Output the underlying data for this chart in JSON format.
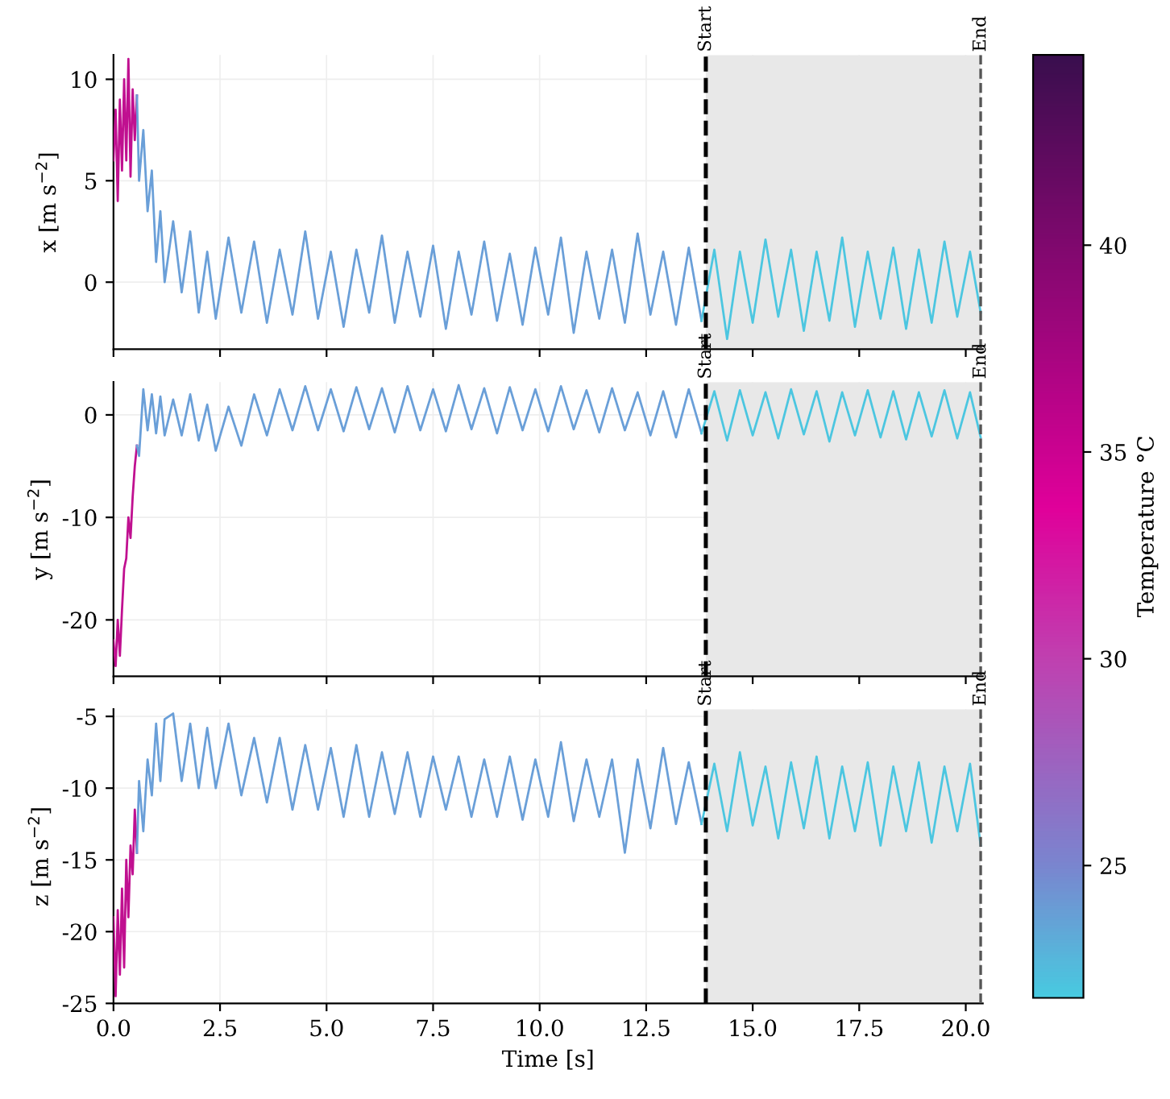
{
  "chart_data": [
    {
      "type": "line",
      "ylabel": "x [m s$^{−2}$]",
      "xlim": [
        0,
        20.4
      ],
      "xticks": [
        0,
        2.5,
        5,
        7.5,
        10,
        12.5,
        15,
        17.5,
        20
      ],
      "ylim": [
        -3.3,
        11.2
      ],
      "yticks": [
        0,
        5,
        10
      ],
      "tick_labels": "y",
      "grid": true,
      "clabel": "Temperature °C",
      "clim": [
        21.8,
        44.6
      ],
      "cticks": [
        25,
        30,
        35,
        40
      ],
      "series": [
        {
          "color": "#c01090",
          "x": [
            0,
            0.05,
            0.1,
            0.15,
            0.2,
            0.25,
            0.3,
            0.35,
            0.4,
            0.45,
            0.5,
            0.55
          ],
          "values": [
            6,
            8.5,
            4,
            9,
            5.5,
            10,
            6,
            11,
            5.2,
            9.5,
            7,
            9.2
          ]
        },
        {
          "color": "#6a9fd8",
          "x": [
            0.55,
            0.6,
            0.7,
            0.8,
            0.9,
            1.0,
            1.1,
            1.2,
            1.4,
            1.6,
            1.8,
            2.0,
            2.2,
            2.4,
            2.7,
            3.0,
            3.3,
            3.6,
            3.9,
            4.2,
            4.5,
            4.8,
            5.1,
            5.4,
            5.7,
            6.0,
            6.3,
            6.6,
            6.9,
            7.2,
            7.5,
            7.8,
            8.1,
            8.4,
            8.7,
            9.0,
            9.3,
            9.6,
            9.9,
            10.2,
            10.5,
            10.8,
            11.1,
            11.4,
            11.7,
            12.0,
            12.3,
            12.6,
            12.9,
            13.2,
            13.5,
            13.8
          ],
          "values": [
            9.2,
            5,
            7.5,
            3.5,
            5.5,
            1,
            3.5,
            0,
            3,
            -0.5,
            2.5,
            -1.5,
            1.5,
            -1.8,
            2.2,
            -1.5,
            2,
            -2,
            1.6,
            -1.6,
            2.5,
            -1.8,
            1.5,
            -2.2,
            1.6,
            -1.5,
            2.3,
            -2,
            1.5,
            -1.7,
            1.8,
            -2.3,
            1.5,
            -1.6,
            2,
            -1.9,
            1.4,
            -2.1,
            1.7,
            -1.6,
            2.2,
            -2.5,
            1.5,
            -1.8,
            1.6,
            -2,
            2.4,
            -1.6,
            1.5,
            -2.1,
            1.7,
            -1.9
          ]
        },
        {
          "color": "#4cc6e0",
          "x": [
            13.8,
            14.1,
            14.4,
            14.7,
            15.0,
            15.3,
            15.6,
            15.9,
            16.2,
            16.5,
            16.8,
            17.1,
            17.4,
            17.7,
            18.0,
            18.3,
            18.6,
            18.9,
            19.2,
            19.5,
            19.8,
            20.1,
            20.35
          ],
          "values": [
            -1.9,
            1.6,
            -2.8,
            1.5,
            -2,
            2.1,
            -1.7,
            1.6,
            -2.4,
            1.5,
            -1.9,
            2.2,
            -2.2,
            1.5,
            -1.8,
            1.7,
            -2.3,
            1.6,
            -2,
            2,
            -1.7,
            1.5,
            -1.5
          ]
        }
      ],
      "ref_lines": [
        {
          "axis": "x",
          "value": 13.9,
          "label": "Start",
          "color": "#000000",
          "line_style": "dashed"
        },
        {
          "axis": "x",
          "value": 20.35,
          "label": "End",
          "color": "#555555",
          "line_style": "dashed"
        }
      ],
      "bands": [
        {
          "axis": "x",
          "from": 13.9,
          "to": 20.35,
          "color": "#e8e8e8"
        }
      ]
    },
    {
      "type": "line",
      "ylabel": "y [m s$^{−2}$]",
      "xlim": [
        0,
        20.4
      ],
      "xticks": [
        0,
        2.5,
        5,
        7.5,
        10,
        12.5,
        15,
        17.5,
        20
      ],
      "ylim": [
        -25.5,
        3.2
      ],
      "yticks": [
        -20,
        -10,
        0
      ],
      "tick_labels": "y",
      "grid": true,
      "series": [
        {
          "color": "#c01090",
          "x": [
            0,
            0.05,
            0.1,
            0.15,
            0.2,
            0.25,
            0.3,
            0.35,
            0.4,
            0.45,
            0.5,
            0.55
          ],
          "values": [
            -22,
            -24.5,
            -20,
            -23.5,
            -19,
            -15,
            -14,
            -10,
            -12,
            -8,
            -5,
            -3
          ]
        },
        {
          "color": "#6a9fd8",
          "x": [
            0.55,
            0.6,
            0.7,
            0.8,
            0.9,
            1.0,
            1.1,
            1.2,
            1.4,
            1.6,
            1.8,
            2.0,
            2.2,
            2.4,
            2.7,
            3.0,
            3.3,
            3.6,
            3.9,
            4.2,
            4.5,
            4.8,
            5.1,
            5.4,
            5.7,
            6.0,
            6.3,
            6.6,
            6.9,
            7.2,
            7.5,
            7.8,
            8.1,
            8.4,
            8.7,
            9.0,
            9.3,
            9.6,
            9.9,
            10.2,
            10.5,
            10.8,
            11.1,
            11.4,
            11.7,
            12.0,
            12.3,
            12.6,
            12.9,
            13.2,
            13.5,
            13.8
          ],
          "values": [
            -3,
            -4,
            2.5,
            -1.5,
            2,
            -1.8,
            1.8,
            -2,
            1.5,
            -2,
            2,
            -2.5,
            1.0,
            -3.5,
            0.8,
            -3,
            2,
            -2,
            2.5,
            -1.5,
            2.8,
            -1.5,
            2.5,
            -1.6,
            2.7,
            -1.4,
            2.6,
            -1.7,
            2.8,
            -1.5,
            2.5,
            -1.6,
            2.9,
            -1.4,
            2.6,
            -1.8,
            2.7,
            -1.5,
            2.5,
            -1.6,
            2.8,
            -1.4,
            2.4,
            -1.7,
            2.6,
            -1.5,
            2.2,
            -2,
            2.3,
            -2.2,
            2.5,
            -1.8
          ]
        },
        {
          "color": "#4cc6e0",
          "x": [
            13.8,
            14.1,
            14.4,
            14.7,
            15.0,
            15.3,
            15.6,
            15.9,
            16.2,
            16.5,
            16.8,
            17.1,
            17.4,
            17.7,
            18.0,
            18.3,
            18.6,
            18.9,
            19.2,
            19.5,
            19.8,
            20.1,
            20.35
          ],
          "values": [
            -1.8,
            2.3,
            -2.5,
            2.4,
            -2,
            2.2,
            -2.3,
            2.5,
            -1.9,
            2.3,
            -2.6,
            2.2,
            -2,
            2.4,
            -2.2,
            2.3,
            -2.4,
            2.2,
            -2.1,
            2.4,
            -2.3,
            2.2,
            -2.2
          ]
        }
      ],
      "ref_lines": [
        {
          "axis": "x",
          "value": 13.9,
          "label": "Start",
          "color": "#000000",
          "line_style": "dashed"
        },
        {
          "axis": "x",
          "value": 20.35,
          "label": "End",
          "color": "#555555",
          "line_style": "dashed"
        }
      ],
      "bands": [
        {
          "axis": "x",
          "from": 13.9,
          "to": 20.35,
          "color": "#e8e8e8"
        }
      ]
    },
    {
      "type": "line",
      "xlabel": "Time [s]",
      "ylabel": "z [m s$^{−2}$]",
      "xlim": [
        0,
        20.4
      ],
      "xticks": [
        {
          "value": 0,
          "label": "0.0"
        },
        2.5,
        {
          "value": 5,
          "label": "5.0"
        },
        7.5,
        {
          "value": 10,
          "label": "10.0"
        },
        12.5,
        {
          "value": 15,
          "label": "15.0"
        },
        17.5,
        {
          "value": 20,
          "label": "20.0"
        }
      ],
      "ylim": [
        -25,
        -4.5
      ],
      "yticks": [
        -25,
        -20,
        -15,
        -10,
        -5
      ],
      "grid": true,
      "series": [
        {
          "color": "#c01090",
          "x": [
            0,
            0.05,
            0.1,
            0.15,
            0.2,
            0.25,
            0.3,
            0.35,
            0.4,
            0.45,
            0.5,
            0.55
          ],
          "values": [
            -19,
            -24.5,
            -18.5,
            -23,
            -17,
            -22.5,
            -15,
            -19,
            -14,
            -16,
            -11.5,
            -14.5
          ]
        },
        {
          "color": "#6a9fd8",
          "x": [
            0.55,
            0.6,
            0.7,
            0.8,
            0.9,
            1.0,
            1.1,
            1.2,
            1.4,
            1.6,
            1.8,
            2.0,
            2.2,
            2.4,
            2.7,
            3.0,
            3.3,
            3.6,
            3.9,
            4.2,
            4.5,
            4.8,
            5.1,
            5.4,
            5.7,
            6.0,
            6.3,
            6.6,
            6.9,
            7.2,
            7.5,
            7.8,
            8.1,
            8.4,
            8.7,
            9.0,
            9.3,
            9.6,
            9.9,
            10.2,
            10.5,
            10.8,
            11.1,
            11.4,
            11.7,
            12.0,
            12.3,
            12.6,
            12.9,
            13.2,
            13.5,
            13.8
          ],
          "values": [
            -14.5,
            -9.5,
            -13,
            -8,
            -10.5,
            -5.5,
            -9.5,
            -5.2,
            -4.8,
            -9.5,
            -5.5,
            -10,
            -5.8,
            -10,
            -5.5,
            -10.5,
            -6.5,
            -11,
            -6.5,
            -11.5,
            -7,
            -11.5,
            -7.2,
            -12,
            -7,
            -12,
            -7.5,
            -11.8,
            -7.5,
            -12,
            -7.8,
            -11.5,
            -7.8,
            -12,
            -8,
            -12,
            -7.8,
            -12.2,
            -8,
            -12,
            -6.8,
            -12.3,
            -8,
            -12,
            -8,
            -14.5,
            -8,
            -12.8,
            -7.2,
            -12.5,
            -8.2,
            -12.5
          ]
        },
        {
          "color": "#4cc6e0",
          "x": [
            13.8,
            14.1,
            14.4,
            14.7,
            15.0,
            15.3,
            15.6,
            15.9,
            16.2,
            16.5,
            16.8,
            17.1,
            17.4,
            17.7,
            18.0,
            18.3,
            18.6,
            18.9,
            19.2,
            19.5,
            19.8,
            20.1,
            20.35
          ],
          "values": [
            -12.5,
            -8.3,
            -13,
            -7.5,
            -12.6,
            -8.5,
            -13.5,
            -8.2,
            -12.8,
            -7.8,
            -13.5,
            -8.5,
            -13,
            -8.2,
            -14,
            -8.5,
            -13,
            -8.2,
            -13.8,
            -8.5,
            -13,
            -8.3,
            -14
          ]
        }
      ],
      "ref_lines": [
        {
          "axis": "x",
          "value": 13.9,
          "label": "Start",
          "color": "#000000",
          "line_style": "dashed"
        },
        {
          "axis": "x",
          "value": 20.35,
          "label": "End",
          "color": "#555555",
          "line_style": "dashed"
        }
      ],
      "bands": [
        {
          "axis": "x",
          "from": 13.9,
          "to": 20.35,
          "color": "#e8e8e8"
        }
      ]
    }
  ]
}
